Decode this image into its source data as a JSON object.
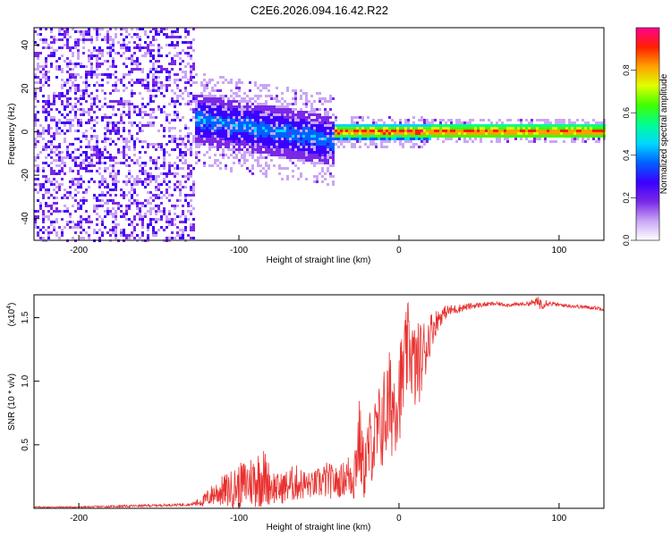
{
  "title": "C2E6.2026.094.16.42.R22",
  "chart_data": [
    {
      "type": "heatmap",
      "name": "spectrogram",
      "xlabel": "Height of straight line (km)",
      "ylabel": "Frequency (Hz)",
      "xlim": [
        -228,
        128
      ],
      "ylim": [
        -50,
        48
      ],
      "x_ticks": [
        -200,
        -100,
        0,
        100
      ],
      "y_ticks": [
        -40,
        -20,
        0,
        20,
        40
      ],
      "colorbar": {
        "label": "Normalized spectral amplitude",
        "range": [
          0,
          1
        ],
        "ticks": [
          "0.0",
          "0.2",
          "0.4",
          "0.6",
          "0.8"
        ],
        "tick_values": [
          0,
          0.2,
          0.4,
          0.6,
          0.8
        ],
        "colors": [
          "#ffffff",
          "#c9a6f5",
          "#7a28e8",
          "#3a00ff",
          "#0060ff",
          "#00d8ff",
          "#00ff90",
          "#40ff00",
          "#e0ff00",
          "#ffa000",
          "#ff2000",
          "#ff0090"
        ]
      },
      "regions": [
        {
          "x_range": [
            -228,
            -128
          ],
          "freq_range": [
            -50,
            48
          ],
          "amplitude": "0.0-0.3",
          "pattern": "scattered noise"
        },
        {
          "x_range": [
            -128,
            -40
          ],
          "center_freq_start": 6,
          "center_freq_end": -4,
          "half_width": 12,
          "amplitude": "0.15-0.45"
        },
        {
          "x_range": [
            -40,
            20
          ],
          "center_freq": 0,
          "half_width": 4,
          "amplitude": "0.3-1.0"
        },
        {
          "x_range": [
            20,
            128
          ],
          "center_freq": 0,
          "half_width": 3,
          "amplitude": "0.5-0.95"
        }
      ]
    },
    {
      "type": "line",
      "name": "snr",
      "xlabel": "Height of straight line (km)",
      "ylabel": "SNR (10 * v/v)",
      "y_scale_label": "(x10",
      "y_scale_exp": "4",
      "xlim": [
        -228,
        128
      ],
      "ylim": [
        0,
        1.68
      ],
      "x_ticks": [
        -200,
        -100,
        0,
        100
      ],
      "y_ticks": [
        0.5,
        1.0,
        1.5
      ],
      "y_tick_labels": [
        "0.5",
        "1.0",
        "1.5"
      ],
      "series": [
        {
          "name": "SNR",
          "color": "#e8312f",
          "x": [
            -228,
            -200,
            -160,
            -130,
            -122,
            -115,
            -105,
            -95,
            -85,
            -80,
            -75,
            -65,
            -55,
            -45,
            -38,
            -33,
            -28,
            -25,
            -22,
            -18,
            -14,
            -10,
            -6,
            -2,
            2,
            6,
            10,
            15,
            20,
            25,
            30,
            40,
            50,
            60,
            70,
            80,
            85,
            88,
            90,
            92,
            95,
            100,
            110,
            120,
            128
          ],
          "y": [
            0.01,
            0.01,
            0.02,
            0.03,
            0.06,
            0.12,
            0.15,
            0.2,
            0.25,
            0.18,
            0.15,
            0.2,
            0.18,
            0.22,
            0.2,
            0.25,
            0.28,
            0.55,
            0.3,
            0.5,
            0.55,
            0.7,
            0.8,
            0.85,
            1.0,
            1.3,
            1.1,
            1.2,
            1.4,
            1.5,
            1.55,
            1.58,
            1.6,
            1.61,
            1.6,
            1.61,
            1.62,
            1.62,
            1.6,
            1.62,
            1.61,
            1.6,
            1.59,
            1.58,
            1.57
          ],
          "noise": [
            0.005,
            0.005,
            0.01,
            0.01,
            0.05,
            0.1,
            0.15,
            0.2,
            0.25,
            0.15,
            0.12,
            0.15,
            0.1,
            0.15,
            0.12,
            0.15,
            0.25,
            0.35,
            0.25,
            0.3,
            0.35,
            0.4,
            0.45,
            0.4,
            0.4,
            0.35,
            0.35,
            0.3,
            0.15,
            0.08,
            0.05,
            0.03,
            0.02,
            0.015,
            0.015,
            0.015,
            0.03,
            0.06,
            0.03,
            0.03,
            0.02,
            0.015,
            0.015,
            0.015,
            0.015
          ]
        }
      ]
    }
  ]
}
